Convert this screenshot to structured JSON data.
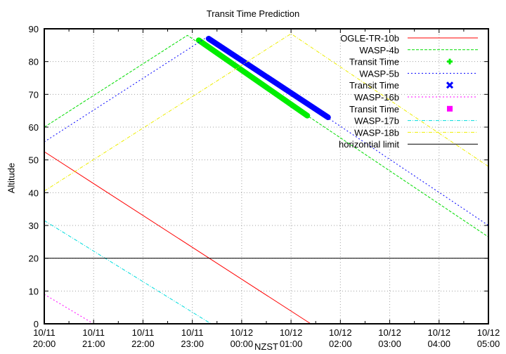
{
  "chart_data": {
    "type": "line",
    "title": "Transit Time Prediction",
    "xlabel": "NZST",
    "ylabel": "Altitude",
    "ylim": [
      0,
      90
    ],
    "xlim_hours": [
      0,
      9
    ],
    "x_ticks": [
      "10/11\n20:00",
      "10/11\n21:00",
      "10/11\n22:00",
      "10/11\n23:00",
      "10/12\n00:00",
      "10/12\n01:00",
      "10/12\n02:00",
      "10/12\n03:00",
      "10/12\n04:00",
      "10/12\n05:00"
    ],
    "y_ticks": [
      0,
      10,
      20,
      30,
      40,
      50,
      60,
      70,
      80,
      90
    ],
    "grid": true,
    "legend_position": "top-right inside",
    "series": [
      {
        "name": "OGLE-TR-10b",
        "color": "#ff0000",
        "style": "solid",
        "points": [
          [
            0,
            52.5
          ],
          [
            5.4,
            0
          ]
        ]
      },
      {
        "name": "WASP-4b",
        "color": "#00dd00",
        "style": "dashed",
        "points": [
          [
            0,
            60
          ],
          [
            2.9,
            88
          ],
          [
            9,
            26.5
          ]
        ]
      },
      {
        "name": "Transit Time",
        "color": "#00ee00",
        "style": "marker-plus",
        "points": [
          [
            3.13,
            86.5
          ],
          [
            5.33,
            63.5
          ]
        ]
      },
      {
        "name": "WASP-5b",
        "color": "#0000ff",
        "style": "dotted",
        "points": [
          [
            0,
            55.5
          ],
          [
            3.3,
            87.5
          ],
          [
            9,
            30
          ]
        ]
      },
      {
        "name": "Transit Time",
        "color": "#0000ff",
        "style": "marker-x",
        "points": [
          [
            3.33,
            87
          ],
          [
            5.75,
            63
          ]
        ]
      },
      {
        "name": "WASP-16b",
        "color": "#ff00ff",
        "style": "dotted",
        "points": [
          [
            0,
            9
          ],
          [
            1.0,
            0
          ]
        ]
      },
      {
        "name": "Transit Time",
        "color": "#ff00ff",
        "style": "marker-square",
        "points": []
      },
      {
        "name": "WASP-17b",
        "color": "#00dddd",
        "style": "dashdot",
        "points": [
          [
            0,
            31.5
          ],
          [
            3.38,
            0
          ]
        ]
      },
      {
        "name": "WASP-18b",
        "color": "#eeee00",
        "style": "dashdot",
        "points": [
          [
            0,
            40.5
          ],
          [
            5.0,
            88.5
          ],
          [
            9,
            48
          ]
        ]
      },
      {
        "name": "horizontial limit",
        "color": "#000000",
        "style": "solid",
        "points": [
          [
            0,
            20
          ],
          [
            9,
            20
          ]
        ]
      }
    ]
  }
}
